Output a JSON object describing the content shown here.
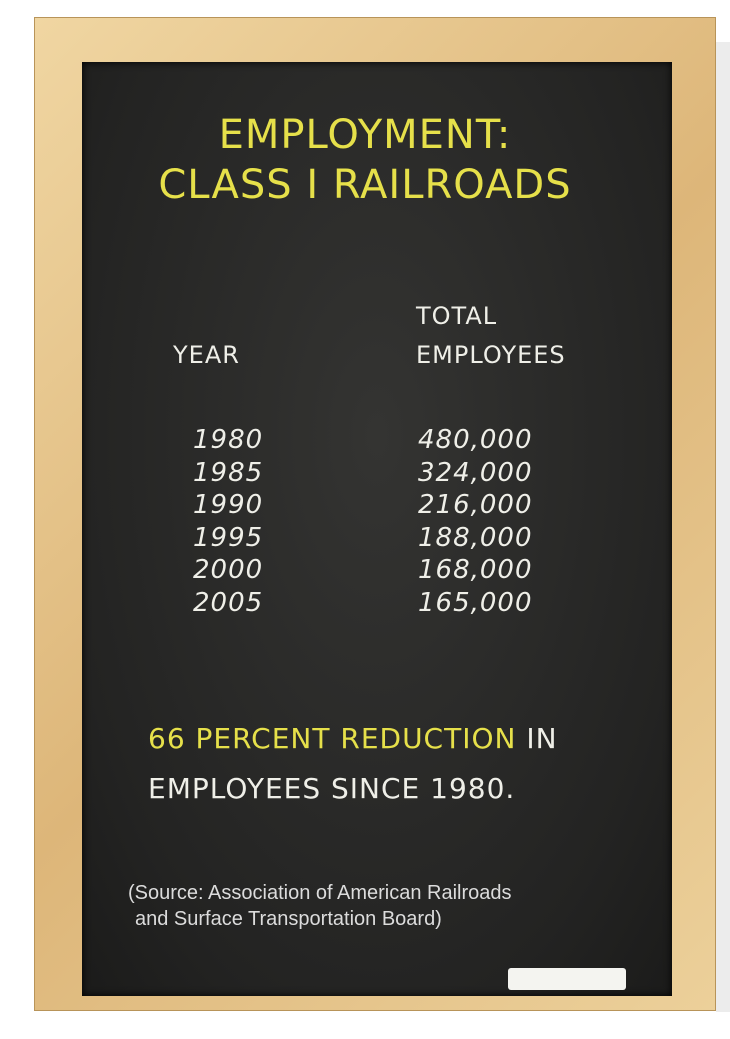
{
  "title": {
    "lines": [
      "EMPLOYMENT:",
      "CLASS I RAILROADS"
    ]
  },
  "table": {
    "headers": {
      "year": "YEAR",
      "employees": [
        "TOTAL",
        "EMPLOYEES"
      ]
    },
    "rows": [
      [
        "1980",
        "480,000"
      ],
      [
        "1985",
        "324,000"
      ],
      [
        "1990",
        "216,000"
      ],
      [
        "1995",
        "188,000"
      ],
      [
        "2000",
        "168,000"
      ],
      [
        "2005",
        "165,000"
      ]
    ]
  },
  "note": {
    "highlight": "66 PERCENT REDUCTION",
    "rest": "IN",
    "line2": "EMPLOYEES SINCE 1980."
  },
  "source": [
    "(Source: Association of American Railroads",
    "and Surface Transportation Board)"
  ]
}
